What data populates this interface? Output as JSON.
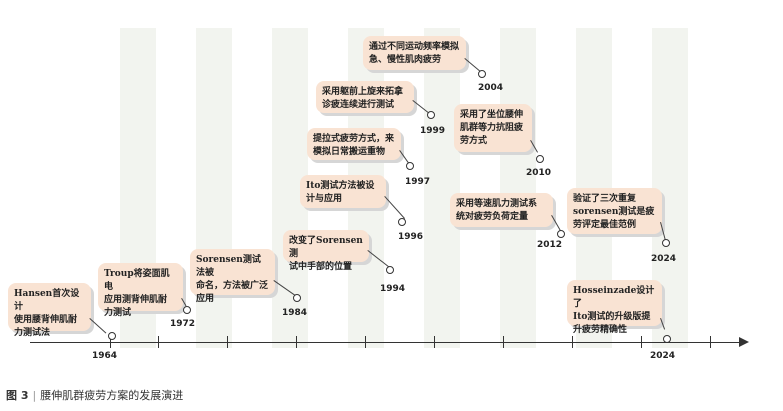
{
  "caption": {
    "label": "图 3",
    "separator": "|",
    "text": "腰伸肌群疲劳方案的发展演进"
  },
  "axis": {
    "start_year": "1964",
    "end_year": "2024"
  },
  "events": [
    {
      "year": "1964",
      "text": "Hansen首次设计\n使用腰背伸肌耐\n力测试法"
    },
    {
      "year": "1972",
      "text": "Troup将姿面肌电\n应用测背伸肌耐\n力测试"
    },
    {
      "year": "1984",
      "text": "Sorensen测试法被\n命名，方法被广泛\n应用"
    },
    {
      "year": "1994",
      "text": "改变了Sorensen测\n试中手部的位置"
    },
    {
      "year": "1996",
      "text": "Ito测试方法被设\n计与应用"
    },
    {
      "year": "1997",
      "text": "提拉式疲劳方式，来\n模拟日常搬运重物"
    },
    {
      "year": "1999",
      "text": "采用躯前上旋来拓拿\n诊疲连续进行测试"
    },
    {
      "year": "2004",
      "text": "通过不同运动频率模拟\n急、慢性肌肉疲劳"
    },
    {
      "year": "2010",
      "text": "采用了坐位腰伸\n肌群等力抗阻疲\n劳方式"
    },
    {
      "year": "2012",
      "text": "采用等速肌力测试系\n统对疲劳负荷定量"
    },
    {
      "year": "2024",
      "text": "验证了三次重复\nsorensen测试是疲\n劳评定最佳范例"
    },
    {
      "year": "2024",
      "text": "Hosseinzade设计了\nIto测试的升级版提\n升疲劳精确性"
    }
  ],
  "colors": {
    "box_fill": "#f9e3d3",
    "stripe": "#f2f4ef",
    "axis": "#333333"
  }
}
